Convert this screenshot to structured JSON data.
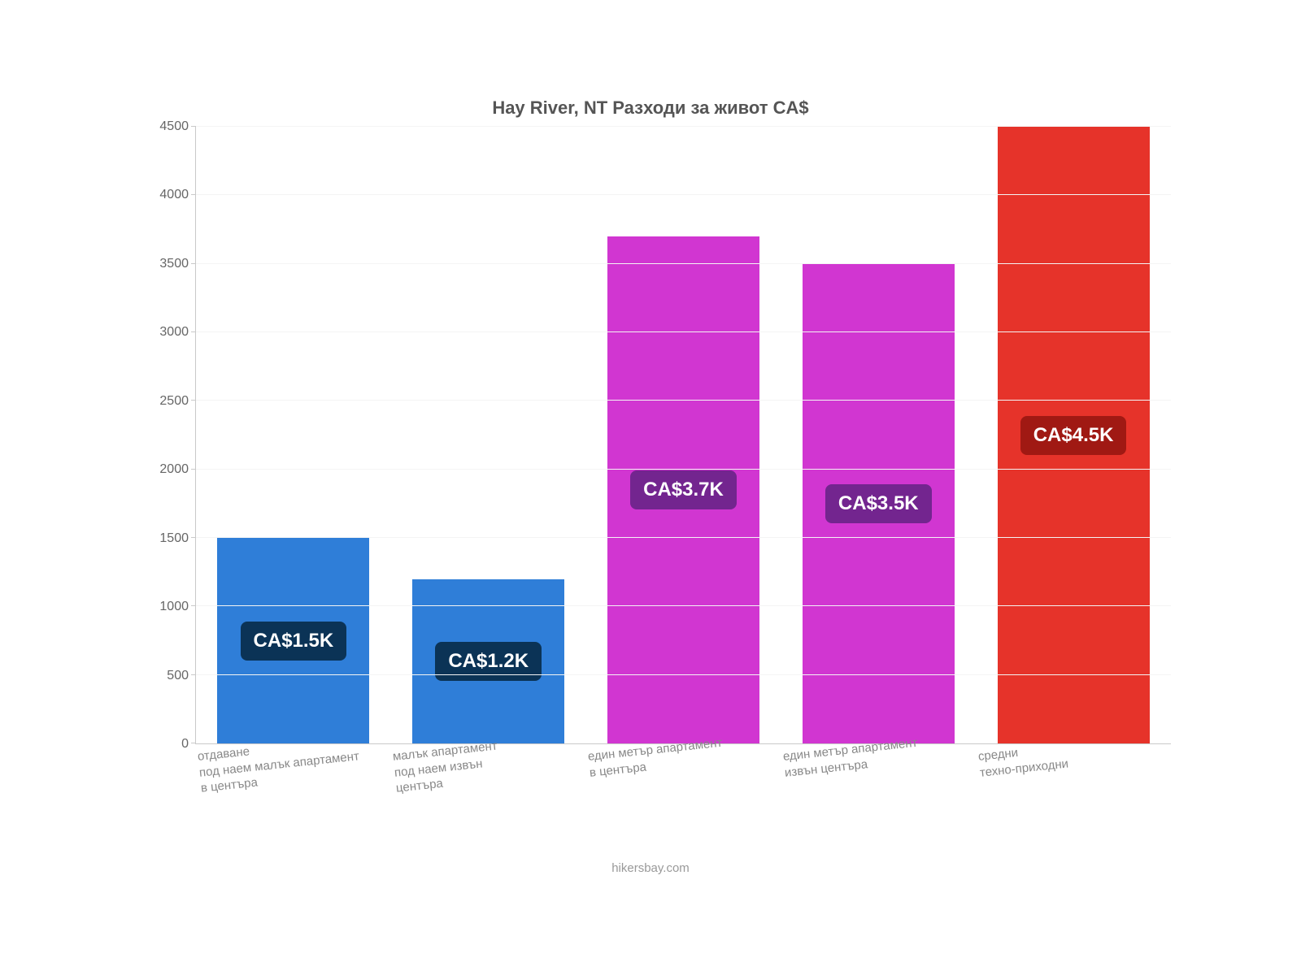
{
  "chart": {
    "type": "bar",
    "title": "Hay River, NT Разходи за живот CA$",
    "title_color": "#555555",
    "title_fontsize": 22,
    "background_color": "#ffffff",
    "axis_color": "#c9c9c9",
    "grid_color": "#f4f4f4",
    "tick_label_color": "#666666",
    "x_label_color": "#888888",
    "tick_fontsize": 16,
    "x_label_fontsize": 15,
    "value_fontsize": 24,
    "ylim": [
      0,
      4500
    ],
    "ytick_step": 500,
    "bar_width": 0.78,
    "categories": [
      "отдаване\nпод наем малък апартамент\nв центъра",
      "малък апартамент\nпод наем извън\nцентъра",
      "един метър апартамент\nв центъра",
      "един метър апартамент\nизвън центъра",
      "средни\nтехно-приходни"
    ],
    "values": [
      1500,
      1200,
      3700,
      3500,
      4500
    ],
    "value_labels": [
      "CA$1.5K",
      "CA$1.2K",
      "CA$3.7K",
      "CA$3.5K",
      "CA$4.5K"
    ],
    "bar_colors": [
      "#2f7ed8",
      "#2f7ed8",
      "#d136d1",
      "#d136d1",
      "#e6332a"
    ],
    "badge_bg_colors": [
      "#0b3356",
      "#0b3356",
      "#73258f",
      "#73258f",
      "#a01913"
    ],
    "credit": "hikersbay.com",
    "credit_color": "#999999"
  }
}
